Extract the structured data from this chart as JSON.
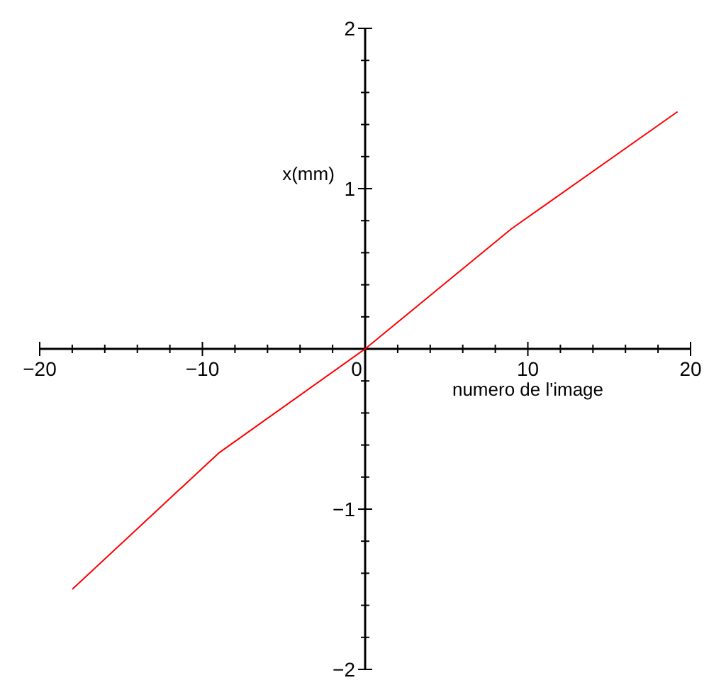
{
  "chart_data": {
    "type": "line",
    "xlabel": "numero de l'image",
    "ylabel": "x(mm)",
    "xlim": [
      -20,
      20
    ],
    "ylim": [
      -2,
      2
    ],
    "xticks": [
      -20,
      {
        "value": -18,
        "label": null
      },
      {
        "value": -16,
        "label": null
      },
      {
        "value": -14,
        "label": null
      },
      {
        "value": -12,
        "label": null
      },
      -10,
      {
        "value": -8,
        "label": null
      },
      {
        "value": -6,
        "label": null
      },
      {
        "value": -4,
        "label": null
      },
      {
        "value": -2,
        "label": null
      },
      0,
      {
        "value": 2,
        "label": null
      },
      {
        "value": 4,
        "label": null
      },
      {
        "value": 6,
        "label": null
      },
      {
        "value": 8,
        "label": null
      },
      10,
      {
        "value": 12,
        "label": null
      },
      {
        "value": 14,
        "label": null
      },
      {
        "value": 16,
        "label": null
      },
      {
        "value": 18,
        "label": null
      },
      20
    ],
    "yticks": [
      -2,
      {
        "value": -1.8,
        "label": null
      },
      {
        "value": -1.6,
        "label": null
      },
      {
        "value": -1.4,
        "label": null
      },
      {
        "value": -1.2,
        "label": null
      },
      -1,
      {
        "value": -0.8,
        "label": null
      },
      {
        "value": -0.6,
        "label": null
      },
      {
        "value": -0.4,
        "label": null
      },
      {
        "value": -0.2,
        "label": null
      },
      {
        "value": 0.2,
        "label": null
      },
      {
        "value": 0.4,
        "label": null
      },
      {
        "value": 0.6,
        "label": null
      },
      {
        "value": 0.8,
        "label": null
      },
      1,
      {
        "value": 1.2,
        "label": null
      },
      {
        "value": 1.4,
        "label": null
      },
      {
        "value": 1.6,
        "label": null
      },
      {
        "value": 1.8,
        "label": null
      },
      2
    ],
    "series": [
      {
        "color": "#ff0000",
        "x": [
          -18,
          -9,
          0,
          9,
          19.2
        ],
        "values": [
          -1.5,
          -0.65,
          0,
          0.75,
          1.48
        ]
      }
    ]
  }
}
